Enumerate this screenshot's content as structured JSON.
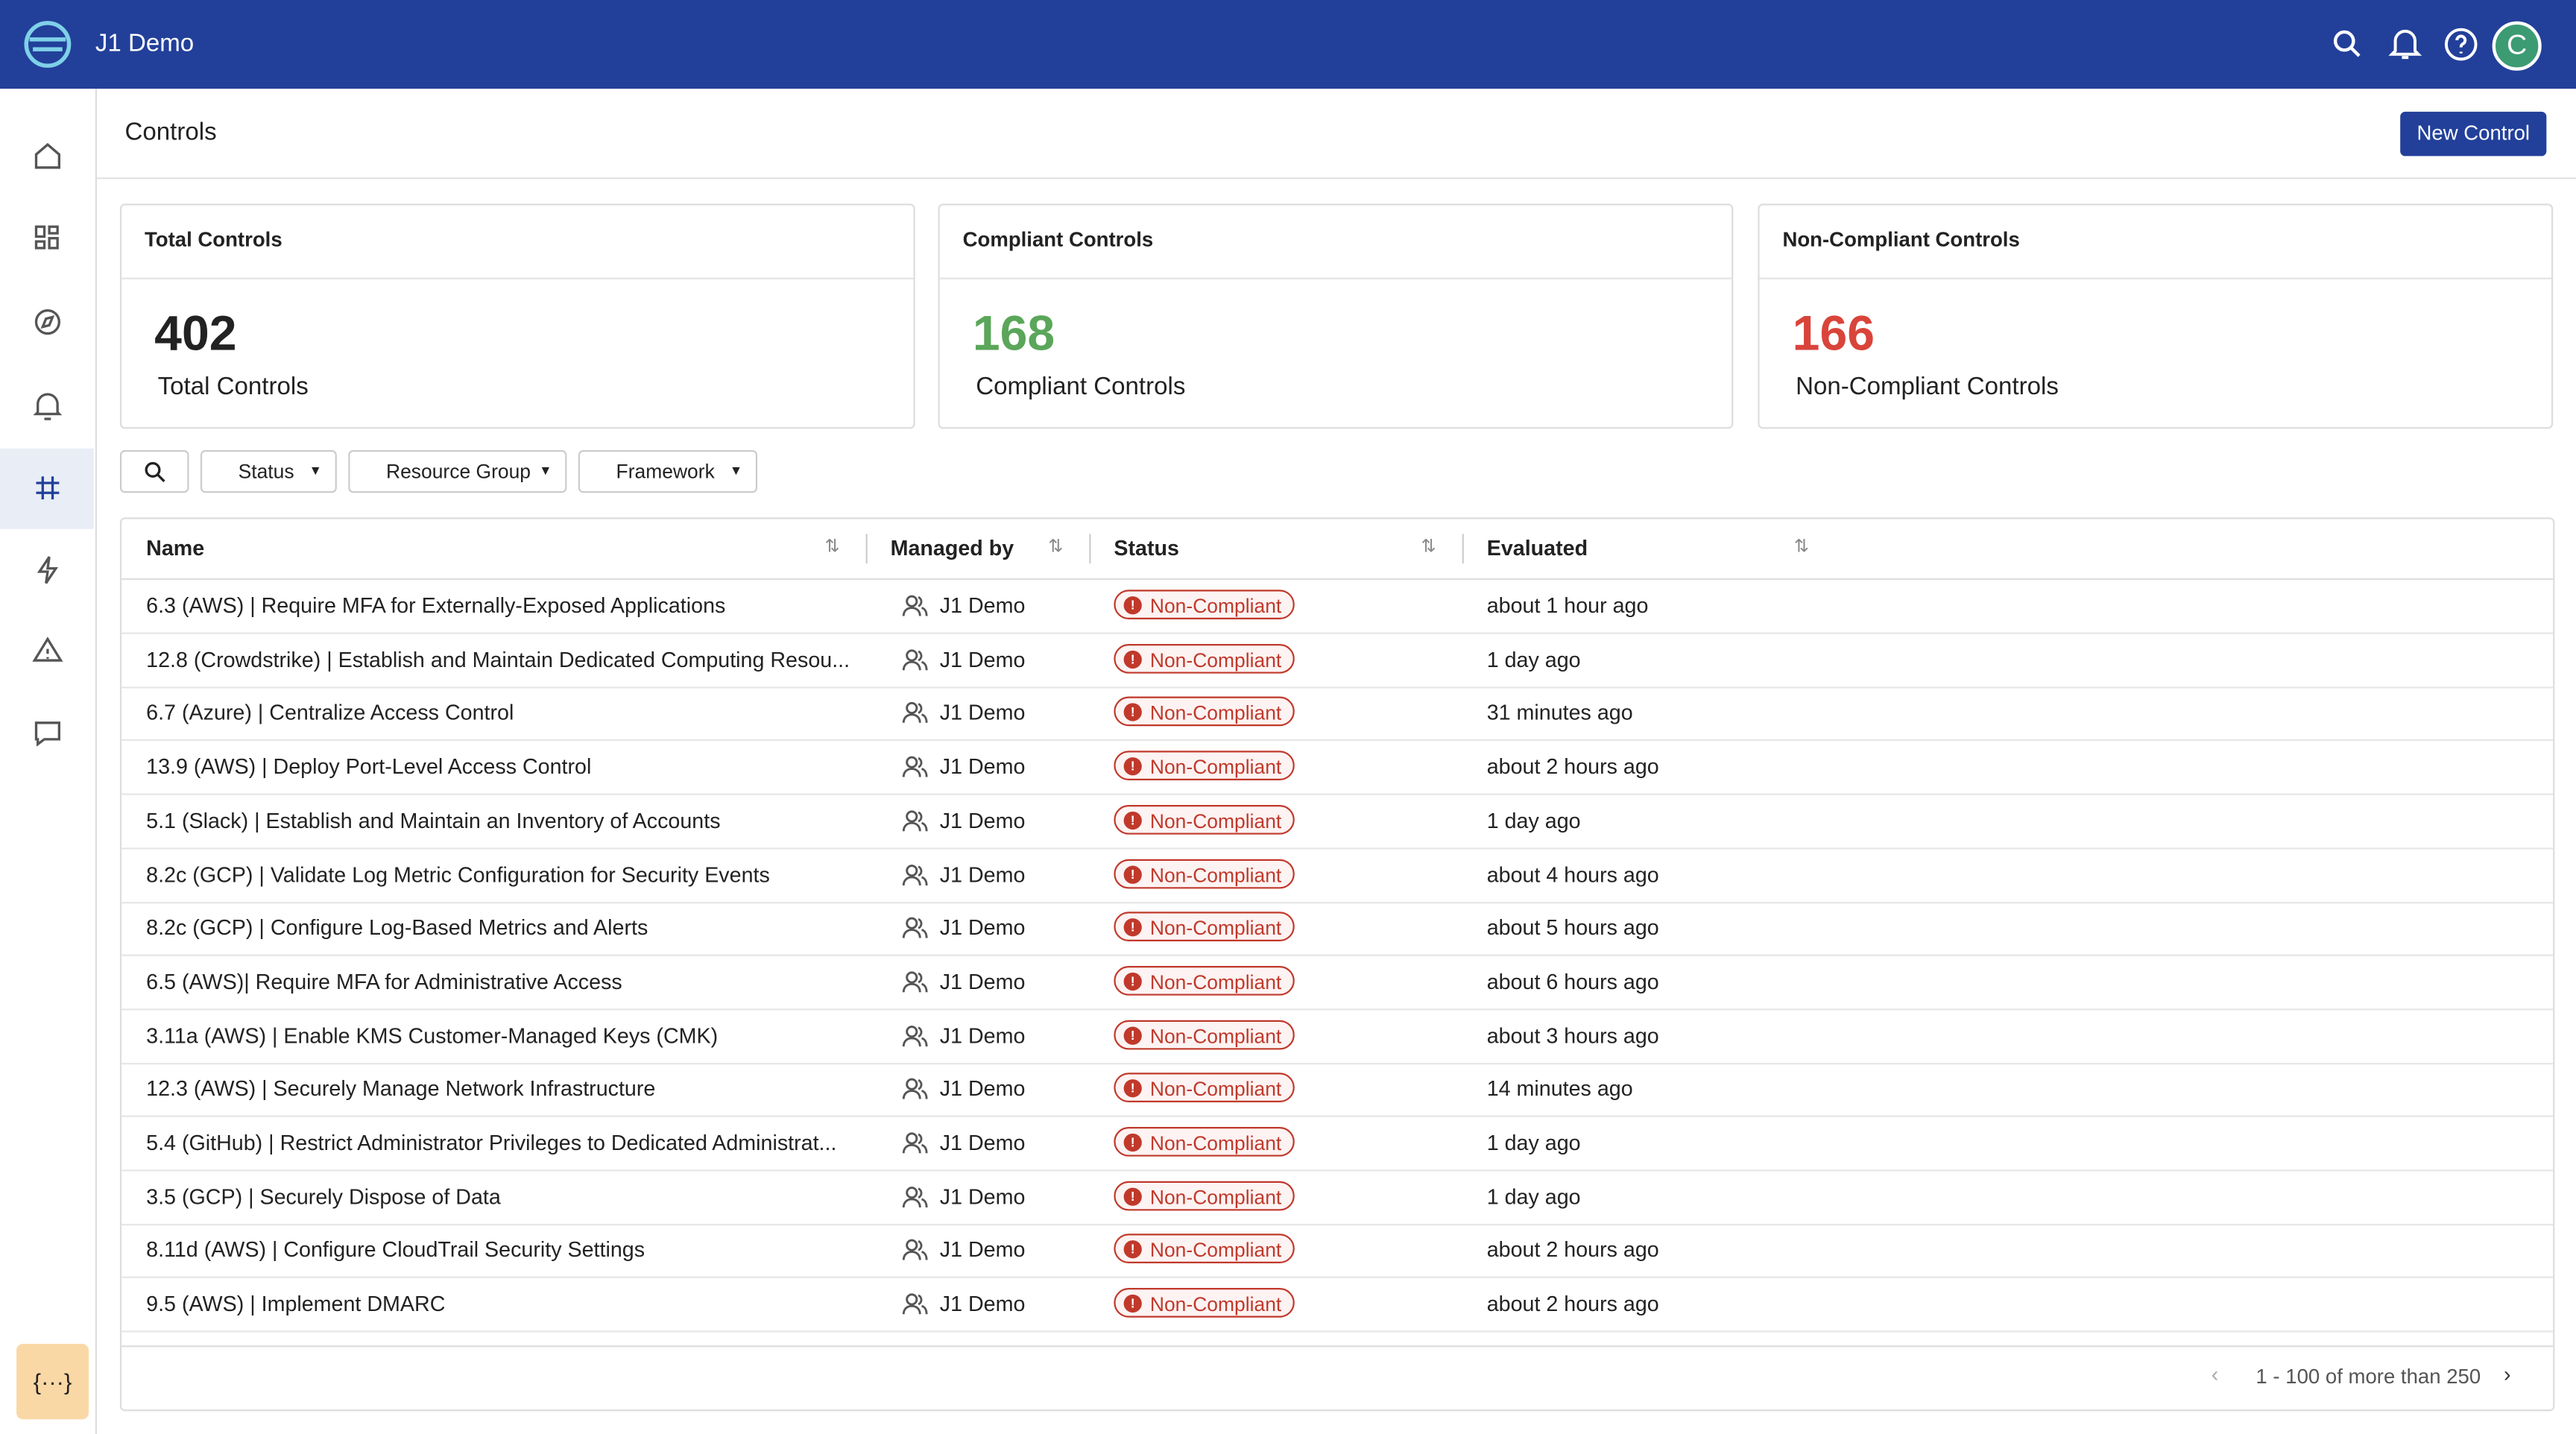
{
  "header": {
    "title": "J1 Demo",
    "avatar": "C"
  },
  "page": {
    "title": "Controls",
    "button": "New Control"
  },
  "cards": [
    {
      "title": "Total Controls",
      "value": 402,
      "label": "Total Controls",
      "color": "#222222"
    },
    {
      "title": "Compliant Controls",
      "value": 168,
      "label": "Compliant Controls",
      "color": "#5aa65a"
    },
    {
      "title": "Non-Compliant Controls",
      "value": 166,
      "label": "Non-Compliant Controls",
      "color": "#d9443a"
    }
  ],
  "filters": [
    "Status",
    "Resource Group",
    "Framework"
  ],
  "table": {
    "columns": [
      "Name",
      "Managed by",
      "Status",
      "Evaluated"
    ],
    "rows": [
      [
        "6.3 (AWS) | Require MFA for Externally-Exposed Applications",
        "J1 Demo",
        "Non-Compliant",
        "about 1 hour ago"
      ],
      [
        "12.8 (Crowdstrike) | Establish and Maintain Dedicated Computing Resou...",
        "J1 Demo",
        "Non-Compliant",
        "1 day ago"
      ],
      [
        "6.7 (Azure) | Centralize Access Control",
        "J1 Demo",
        "Non-Compliant",
        "31 minutes ago"
      ],
      [
        "13.9 (AWS) | Deploy Port-Level Access Control",
        "J1 Demo",
        "Non-Compliant",
        "about 2 hours ago"
      ],
      [
        "5.1 (Slack) | Establish and Maintain an Inventory of Accounts",
        "J1 Demo",
        "Non-Compliant",
        "1 day ago"
      ],
      [
        "8.2c (GCP) | Validate Log Metric Configuration for Security Events",
        "J1 Demo",
        "Non-Compliant",
        "about 4 hours ago"
      ],
      [
        "8.2c (GCP) | Configure Log-Based Metrics and Alerts",
        "J1 Demo",
        "Non-Compliant",
        "about 5 hours ago"
      ],
      [
        "6.5 (AWS)| Require MFA for Administrative Access",
        "J1 Demo",
        "Non-Compliant",
        "about 6 hours ago"
      ],
      [
        "3.11a (AWS) | Enable KMS Customer-Managed Keys (CMK)",
        "J1 Demo",
        "Non-Compliant",
        "about 3 hours ago"
      ],
      [
        "12.3 (AWS) | Securely Manage Network Infrastructure",
        "J1 Demo",
        "Non-Compliant",
        "14 minutes ago"
      ],
      [
        "5.4 (GitHub) | Restrict Administrator Privileges to Dedicated Administrat...",
        "J1 Demo",
        "Non-Compliant",
        "1 day ago"
      ],
      [
        "3.5 (GCP) | Securely Dispose of Data",
        "J1 Demo",
        "Non-Compliant",
        "1 day ago"
      ],
      [
        "8.11d (AWS) | Configure CloudTrail Security Settings",
        "J1 Demo",
        "Non-Compliant",
        "about 2 hours ago"
      ],
      [
        "9.5 (AWS) | Implement DMARC",
        "J1 Demo",
        "Non-Compliant",
        "about 2 hours ago"
      ]
    ]
  },
  "pagination": "1 - 100 of more than 250",
  "dev_button": "{···}"
}
